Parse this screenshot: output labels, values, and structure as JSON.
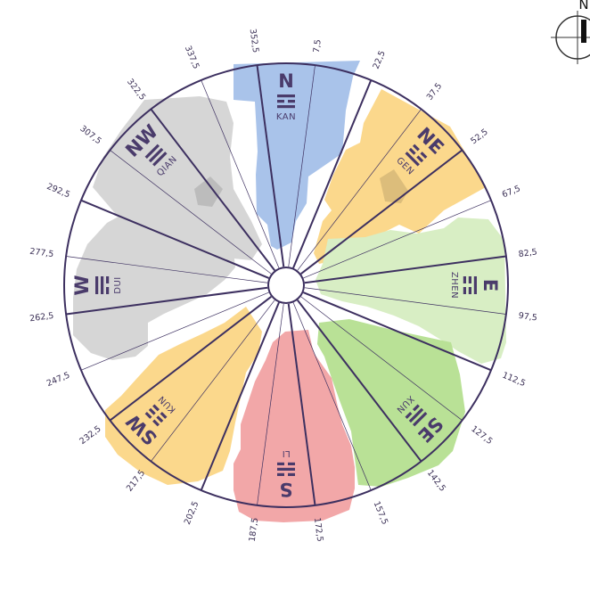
{
  "north_marker": {
    "label": "N"
  },
  "degree_labels": [
    "7,5",
    "22,5",
    "37,5",
    "52,5",
    "67,5",
    "82,5",
    "97,5",
    "112,5",
    "127,5",
    "142,5",
    "157,5",
    "172,5",
    "187,5",
    "202,5",
    "217,5",
    "232,5",
    "247,5",
    "262,5",
    "277,5",
    "292,5",
    "307,5",
    "322,5",
    "337,5",
    "352,5"
  ],
  "sectors": [
    {
      "id": "n",
      "direction": "N",
      "trigram": "KAN",
      "angle": 0,
      "color": "#a9c3ea",
      "lines": [
        1,
        0,
        1
      ]
    },
    {
      "id": "ne",
      "direction": "NE",
      "trigram": "GEN",
      "angle": 45,
      "color": "#fbd88c",
      "lines": [
        0,
        0,
        1
      ]
    },
    {
      "id": "e",
      "direction": "E",
      "trigram": "ZHEN",
      "angle": 90,
      "color": "#d8eec4",
      "lines": [
        1,
        0,
        0
      ]
    },
    {
      "id": "se",
      "direction": "SE",
      "trigram": "XUN",
      "angle": 135,
      "color": "#b9e196",
      "lines": [
        1,
        1,
        0
      ]
    },
    {
      "id": "s",
      "direction": "S",
      "trigram": "LI",
      "angle": 180,
      "color": "#f2a7a8",
      "lines": [
        0,
        1,
        0
      ]
    },
    {
      "id": "sw",
      "direction": "SW",
      "trigram": "KUN",
      "angle": 225,
      "color": "#fbd88c",
      "lines": [
        0,
        0,
        0
      ]
    },
    {
      "id": "w",
      "direction": "W",
      "trigram": "DUI",
      "angle": 270,
      "color": "#d6d6d6",
      "lines": [
        1,
        1,
        0
      ]
    },
    {
      "id": "nw",
      "direction": "NW",
      "trigram": "QIAN",
      "angle": 315,
      "color": "#d6d6d6",
      "lines": [
        1,
        1,
        1
      ]
    }
  ]
}
